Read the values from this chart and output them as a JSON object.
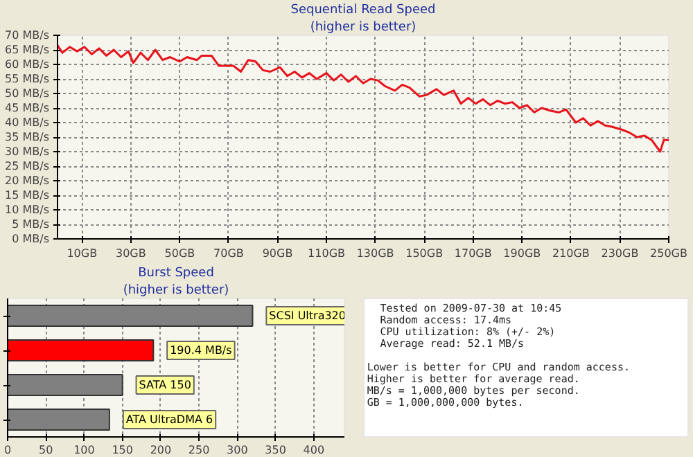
{
  "chart_data": [
    {
      "type": "line",
      "title": "Sequential Read Speed",
      "subtitle": "(higher is better)",
      "xlim": [
        0,
        250
      ],
      "ylim": [
        0,
        70
      ],
      "grid": true,
      "line_style": "solid",
      "marker": "none",
      "xticks": [
        {
          "value": 10,
          "label": "10GB"
        },
        {
          "value": 30,
          "label": "30GB"
        },
        {
          "value": 50,
          "label": "50GB"
        },
        {
          "value": 70,
          "label": "70GB"
        },
        {
          "value": 90,
          "label": "90GB"
        },
        {
          "value": 110,
          "label": "110GB"
        },
        {
          "value": 130,
          "label": "130GB"
        },
        {
          "value": 150,
          "label": "150GB"
        },
        {
          "value": 170,
          "label": "170GB"
        },
        {
          "value": 190,
          "label": "190GB"
        },
        {
          "value": 210,
          "label": "210GB"
        },
        {
          "value": 230,
          "label": "230GB"
        },
        {
          "value": 250,
          "label": "250GB"
        }
      ],
      "yticks": [
        {
          "value": 0,
          "label": "0 MB/s"
        },
        {
          "value": 5,
          "label": "5 MB/s"
        },
        {
          "value": 10,
          "label": "10 MB/s"
        },
        {
          "value": 15,
          "label": "15 MB/s"
        },
        {
          "value": 20,
          "label": "20 MB/s"
        },
        {
          "value": 25,
          "label": "25 MB/s"
        },
        {
          "value": 30,
          "label": "30 MB/s"
        },
        {
          "value": 35,
          "label": "35 MB/s"
        },
        {
          "value": 40,
          "label": "40 MB/s"
        },
        {
          "value": 45,
          "label": "45 MB/s"
        },
        {
          "value": 50,
          "label": "50 MB/s"
        },
        {
          "value": 55,
          "label": "55 MB/s"
        },
        {
          "value": 60,
          "label": "60 MB/s"
        },
        {
          "value": 65,
          "label": "65 MB/s"
        },
        {
          "value": 70,
          "label": "70 MB/s"
        }
      ],
      "x": [
        0,
        2,
        5,
        8,
        11,
        14,
        17,
        20,
        23,
        26,
        29,
        31,
        34,
        37,
        40,
        43,
        46,
        50,
        53,
        57,
        59,
        63,
        66,
        70,
        72,
        75,
        78,
        81,
        84,
        87,
        91,
        94,
        97,
        100,
        103,
        106,
        110,
        113,
        116,
        119,
        122,
        125,
        128,
        131,
        134,
        138,
        141,
        144,
        148,
        151,
        155,
        158,
        162,
        165,
        168,
        171,
        174,
        177,
        180,
        183,
        186,
        189,
        192,
        195,
        198,
        202,
        205,
        208,
        212,
        215,
        218,
        221,
        224,
        227,
        231,
        234,
        237,
        240,
        243,
        246.5,
        248,
        250
      ],
      "series": [
        {
          "color": "#e8141c",
          "values": [
            66.5,
            64,
            66,
            64.5,
            66,
            63.5,
            65.5,
            63,
            65,
            62.5,
            64.5,
            60.5,
            64,
            61.5,
            65,
            61.5,
            62.5,
            61,
            62.5,
            61.5,
            63,
            63,
            59.5,
            59.5,
            59.5,
            57.5,
            61.5,
            61,
            58,
            57.5,
            59,
            56,
            57.5,
            55.5,
            57,
            55,
            57,
            54.5,
            56.5,
            54,
            56,
            53.5,
            55,
            54.5,
            52.5,
            51,
            53,
            52,
            49,
            49.5,
            51.5,
            49.5,
            51,
            46.5,
            48.5,
            46.5,
            48,
            46,
            47.5,
            46.5,
            47,
            45,
            46,
            43.5,
            45,
            44,
            43.5,
            44.5,
            40,
            41.5,
            39,
            40.5,
            39,
            38.5,
            37.5,
            36.5,
            35,
            35.5,
            34,
            30,
            34,
            34
          ]
        }
      ]
    },
    {
      "type": "bar",
      "orientation": "horizontal",
      "title": "Burst Speed",
      "subtitle": "(higher is better)",
      "categories": [
        null,
        null,
        null,
        null
      ],
      "values": [
        320,
        190.4,
        150,
        133
      ],
      "colors": [
        "#808080",
        "#ff0000",
        "#808080",
        "#808080"
      ],
      "value_labels": [
        "SCSI Ultra320",
        "190.4 MB/s",
        "SATA 150",
        "ATA UltraDMA 6"
      ],
      "xlim": [
        0,
        440
      ],
      "xticks": [
        0,
        50,
        100,
        150,
        200,
        250,
        300,
        350,
        400
      ],
      "grid": "x"
    },
    {
      "type": "other",
      "annotations": [
        "Tested on 2009-07-30 at 10:45",
        "Random access: 17.4ms",
        "CPU utilization: 8% (+/- 2%)",
        "Average read: 52.1 MB/s",
        "Lower is better for CPU and random access.",
        "Higher is better for average read.",
        "MB/s = 1,000,000 bytes per second.",
        "GB = 1,000,000,000 bytes."
      ]
    }
  ]
}
